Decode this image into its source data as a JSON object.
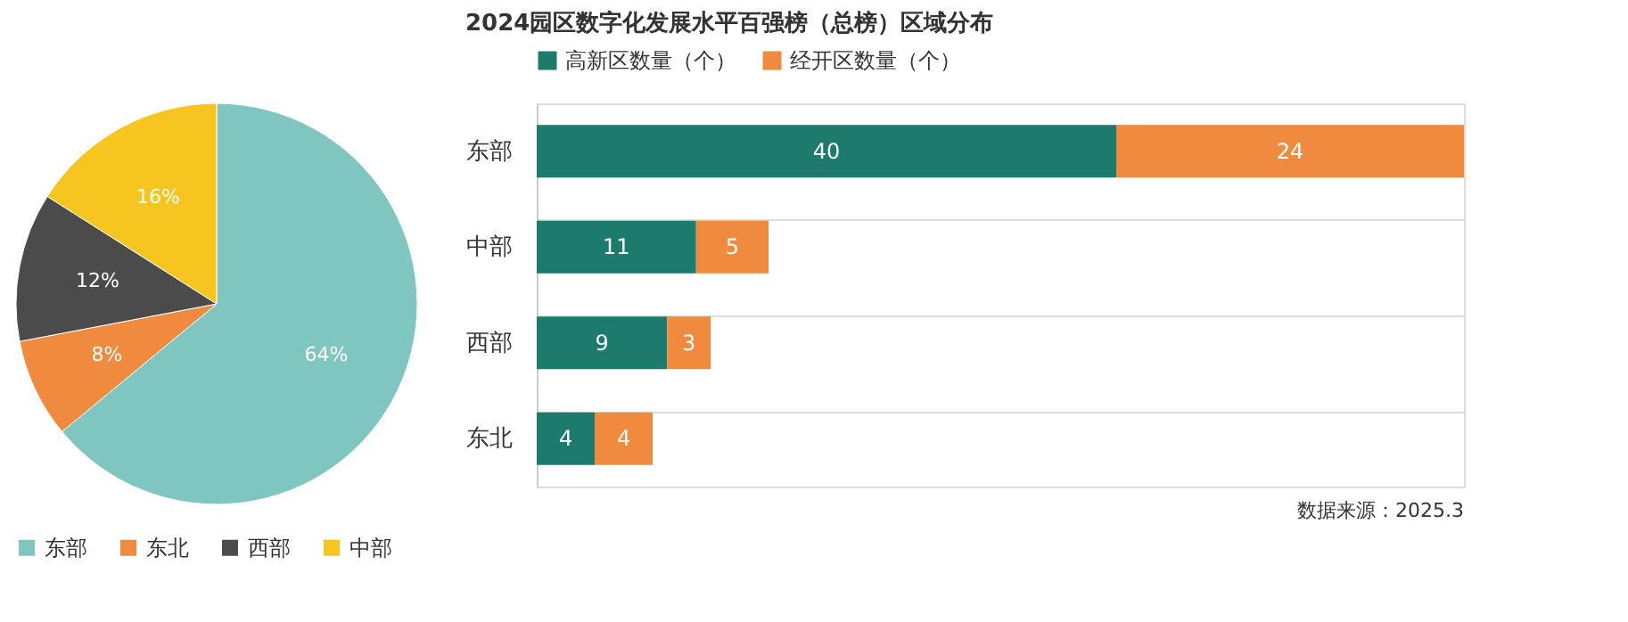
{
  "chart_data": [
    {
      "type": "pie",
      "categories": [
        "东部",
        "东北",
        "西部",
        "中部"
      ],
      "values": [
        64,
        8,
        12,
        16
      ],
      "colors": [
        "#7fc6c1",
        "#ef8a3e",
        "#4b4b4b",
        "#f7c51f"
      ],
      "value_labels": [
        "64%",
        "8%",
        "12%",
        "16%"
      ],
      "legend": "bottom"
    },
    {
      "type": "bar",
      "title": "2024园区数字化发展水平百强榜（总榜）区域分布",
      "orientation": "horizontal",
      "stacked": true,
      "categories": [
        "东部",
        "中部",
        "西部",
        "东北"
      ],
      "series": [
        {
          "name": "高新区数量（个）",
          "color": "#1c7b6d",
          "values": [
            40,
            11,
            9,
            4
          ]
        },
        {
          "name": "经开区数量（个）",
          "color": "#ef8a3e",
          "values": [
            24,
            5,
            3,
            4
          ]
        }
      ],
      "data_labels": true,
      "legend": "top",
      "grid": "y",
      "tick_labels": "y",
      "annotations": [
        "数据来源：2025.3"
      ]
    }
  ]
}
